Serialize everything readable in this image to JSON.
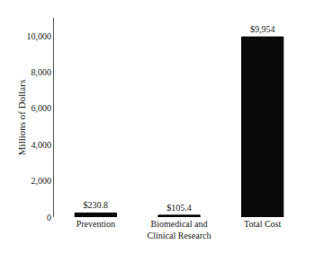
{
  "chart_data": {
    "type": "bar",
    "categories": [
      "Prevention",
      "Biomedical and\nClinical Research",
      "Total Cost"
    ],
    "values": [
      230.8,
      105.4,
      9954
    ],
    "value_labels": [
      "$230.8",
      "$105.4",
      "$9,954"
    ],
    "data_labels": true,
    "color": "#0a0a0a",
    "ylabel": "Millions of Dollars",
    "ylim": [
      0,
      11000
    ],
    "yticks": [
      0,
      {
        "value": 2000,
        "label": "2,000"
      },
      {
        "value": 4000,
        "label": "4,000"
      },
      {
        "value": 6000,
        "label": "6,000"
      },
      {
        "value": 8000,
        "label": "8,000"
      },
      {
        "value": 10000,
        "label": "10,000"
      }
    ],
    "grid": false
  }
}
